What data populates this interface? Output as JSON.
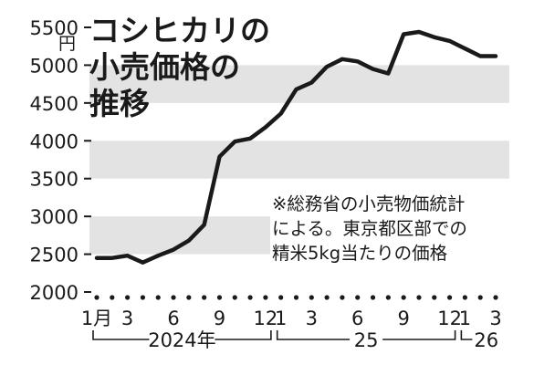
{
  "chart_data": {
    "type": "line",
    "title_lines": [
      "コシヒカリの",
      "小売価格の",
      "推移"
    ],
    "unit": "円",
    "note_lines": [
      "※総務省の小売物価統計",
      "による。東京都区部での",
      "精米5kg当たりの価格"
    ],
    "ylim": [
      2000,
      5500
    ],
    "yticks": [
      "2000",
      "2500",
      "3000",
      "3500",
      "4000",
      "4500",
      "5000",
      "5500"
    ],
    "x_tick_labels": [
      {
        "month": 1,
        "label": "1月"
      },
      {
        "month": 3,
        "label": "3"
      },
      {
        "month": 6,
        "label": "6"
      },
      {
        "month": 9,
        "label": "9"
      },
      {
        "month": 12,
        "label": "12"
      },
      {
        "month": 13,
        "label": "1"
      },
      {
        "month": 15,
        "label": "3"
      },
      {
        "month": 18,
        "label": "6"
      },
      {
        "month": 21,
        "label": "9"
      },
      {
        "month": 24,
        "label": "12"
      },
      {
        "month": 25,
        "label": "1"
      },
      {
        "month": 27,
        "label": "3"
      }
    ],
    "year_labels": [
      {
        "label": "2024年",
        "from": 1,
        "to": 12
      },
      {
        "label": "25",
        "from": 13,
        "to": 24
      },
      {
        "label": "26",
        "from": 25,
        "to": 27
      }
    ],
    "series": [
      {
        "x": [
          1,
          2,
          3,
          4,
          5,
          6,
          7,
          8,
          9,
          10,
          11,
          12,
          13,
          14,
          15,
          16,
          17,
          18,
          19,
          20,
          21,
          22,
          23,
          24,
          25,
          26,
          27
        ],
        "values": [
          2450,
          2450,
          2480,
          2390,
          2480,
          2560,
          2680,
          2890,
          3790,
          3990,
          4030,
          4180,
          4360,
          4680,
          4770,
          4980,
          5080,
          5050,
          4950,
          4890,
          5410,
          5440,
          5370,
          5320,
          5220,
          5120,
          5120
        ]
      }
    ],
    "grid": "horizontal bands",
    "colors": {
      "line": "#1a1a1a",
      "band": "#e3e3e3",
      "axis": "#1a1a1a"
    }
  }
}
